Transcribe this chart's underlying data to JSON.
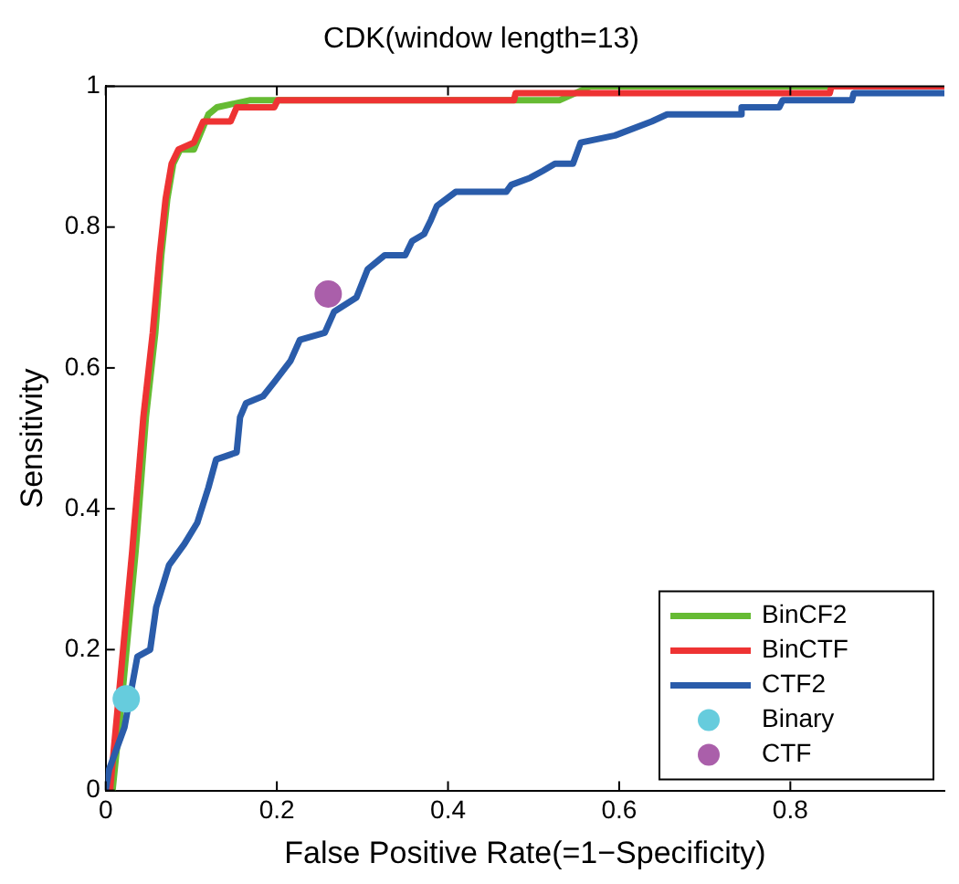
{
  "chart_data": {
    "type": "line",
    "title": "CDK(window length=13)",
    "xlabel": "False Positive Rate(=1−Specificity)",
    "ylabel": "Sensitivity",
    "xlim": [
      0,
      0.98
    ],
    "ylim": [
      0,
      1
    ],
    "xticks": [
      0,
      0.2,
      0.4,
      0.6,
      0.8
    ],
    "yticks": [
      0,
      0.2,
      0.4,
      0.6,
      0.8,
      1
    ],
    "grid": false,
    "legend": "bottom right",
    "series": [
      {
        "name": "BinCF2",
        "color": "#66bb33",
        "x": [
          0,
          0.008,
          0.019,
          0.035,
          0.037,
          0.047,
          0.058,
          0.065,
          0.072,
          0.079,
          0.087,
          0.103,
          0.12,
          0.13,
          0.168,
          0.53,
          0.567,
          0.98
        ],
        "values": [
          0,
          0,
          0.13,
          0.34,
          0.37,
          0.53,
          0.65,
          0.76,
          0.84,
          0.89,
          0.91,
          0.91,
          0.96,
          0.97,
          0.98,
          0.98,
          1,
          1
        ]
      },
      {
        "name": "BinCTF",
        "color": "#ee3333",
        "x": [
          0,
          0.005,
          0.015,
          0.031,
          0.033,
          0.044,
          0.055,
          0.063,
          0.07,
          0.077,
          0.085,
          0.103,
          0.114,
          0.146,
          0.153,
          0.197,
          0.201,
          0.477,
          0.479,
          0.846,
          0.848,
          0.98
        ],
        "values": [
          0,
          0,
          0.13,
          0.34,
          0.37,
          0.53,
          0.65,
          0.76,
          0.84,
          0.89,
          0.91,
          0.92,
          0.95,
          0.95,
          0.97,
          0.97,
          0.98,
          0.98,
          0.99,
          0.99,
          1,
          1
        ]
      },
      {
        "name": "CTF2",
        "color": "#2a5caa",
        "x": [
          0,
          0.004,
          0.022,
          0.037,
          0.052,
          0.059,
          0.074,
          0.092,
          0.107,
          0.12,
          0.129,
          0.153,
          0.157,
          0.164,
          0.184,
          0.197,
          0.216,
          0.227,
          0.256,
          0.267,
          0.293,
          0.306,
          0.326,
          0.35,
          0.358,
          0.372,
          0.38,
          0.387,
          0.409,
          0.468,
          0.474,
          0.496,
          0.511,
          0.525,
          0.546,
          0.555,
          0.595,
          0.638,
          0.656,
          0.741,
          0.743,
          0.787,
          0.791,
          0.872,
          0.874,
          0.98
        ],
        "values": [
          0,
          0.03,
          0.09,
          0.19,
          0.2,
          0.26,
          0.32,
          0.35,
          0.38,
          0.43,
          0.47,
          0.48,
          0.53,
          0.55,
          0.56,
          0.58,
          0.61,
          0.64,
          0.65,
          0.68,
          0.7,
          0.74,
          0.76,
          0.76,
          0.78,
          0.79,
          0.81,
          0.83,
          0.85,
          0.85,
          0.86,
          0.87,
          0.88,
          0.89,
          0.89,
          0.92,
          0.93,
          0.95,
          0.96,
          0.96,
          0.97,
          0.97,
          0.98,
          0.98,
          0.99,
          0.99
        ]
      },
      {
        "name": "Binary",
        "type": "scatter",
        "marker": "circle",
        "color": "#66ccdd",
        "x": [
          0.024
        ],
        "values": [
          0.13
        ]
      },
      {
        "name": "CTF",
        "type": "scatter",
        "marker": "circle",
        "color": "#aa5faa",
        "x": [
          0.26
        ],
        "values": [
          0.705
        ]
      }
    ]
  }
}
